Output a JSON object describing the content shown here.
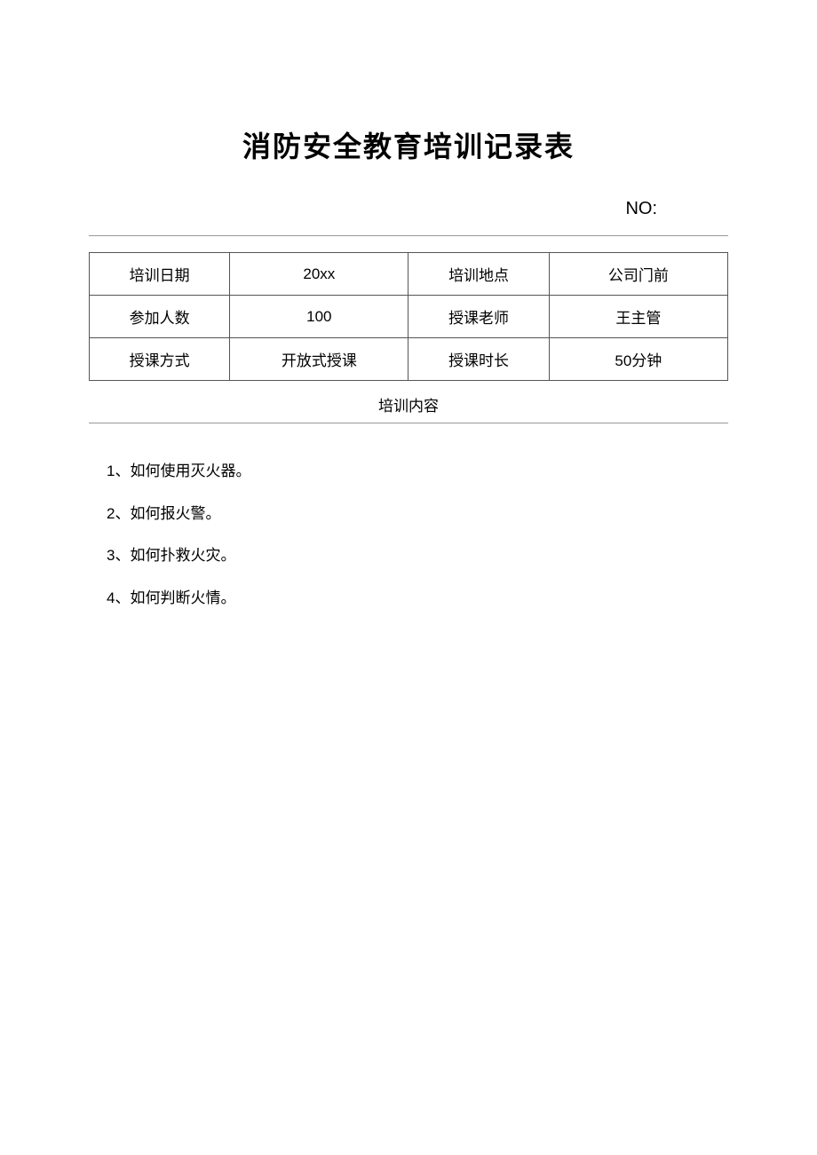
{
  "title": "消防安全教育培训记录表",
  "no_label": "NO:",
  "table": {
    "rows": [
      {
        "label1": "培训日期",
        "value1": "20xx",
        "label2": "培训地点",
        "value2": "公司门前"
      },
      {
        "label1": "参加人数",
        "value1": "100",
        "label2": "授课老师",
        "value2": "王主管"
      },
      {
        "label1": "授课方式",
        "value1": "开放式授课",
        "label2": "授课时长",
        "value2": "50分钟"
      }
    ]
  },
  "section_header": "培训内容",
  "content_items": [
    "1、如何使用灭火器。",
    "2、如何报火警。",
    "3、如何扑救火灾。",
    "4、如何判断火情。"
  ],
  "colors": {
    "text": "#000000",
    "border": "#555555",
    "hr": "#999999",
    "background": "#ffffff"
  },
  "fonts": {
    "title_size": 32,
    "body_size": 17,
    "no_size": 20
  }
}
